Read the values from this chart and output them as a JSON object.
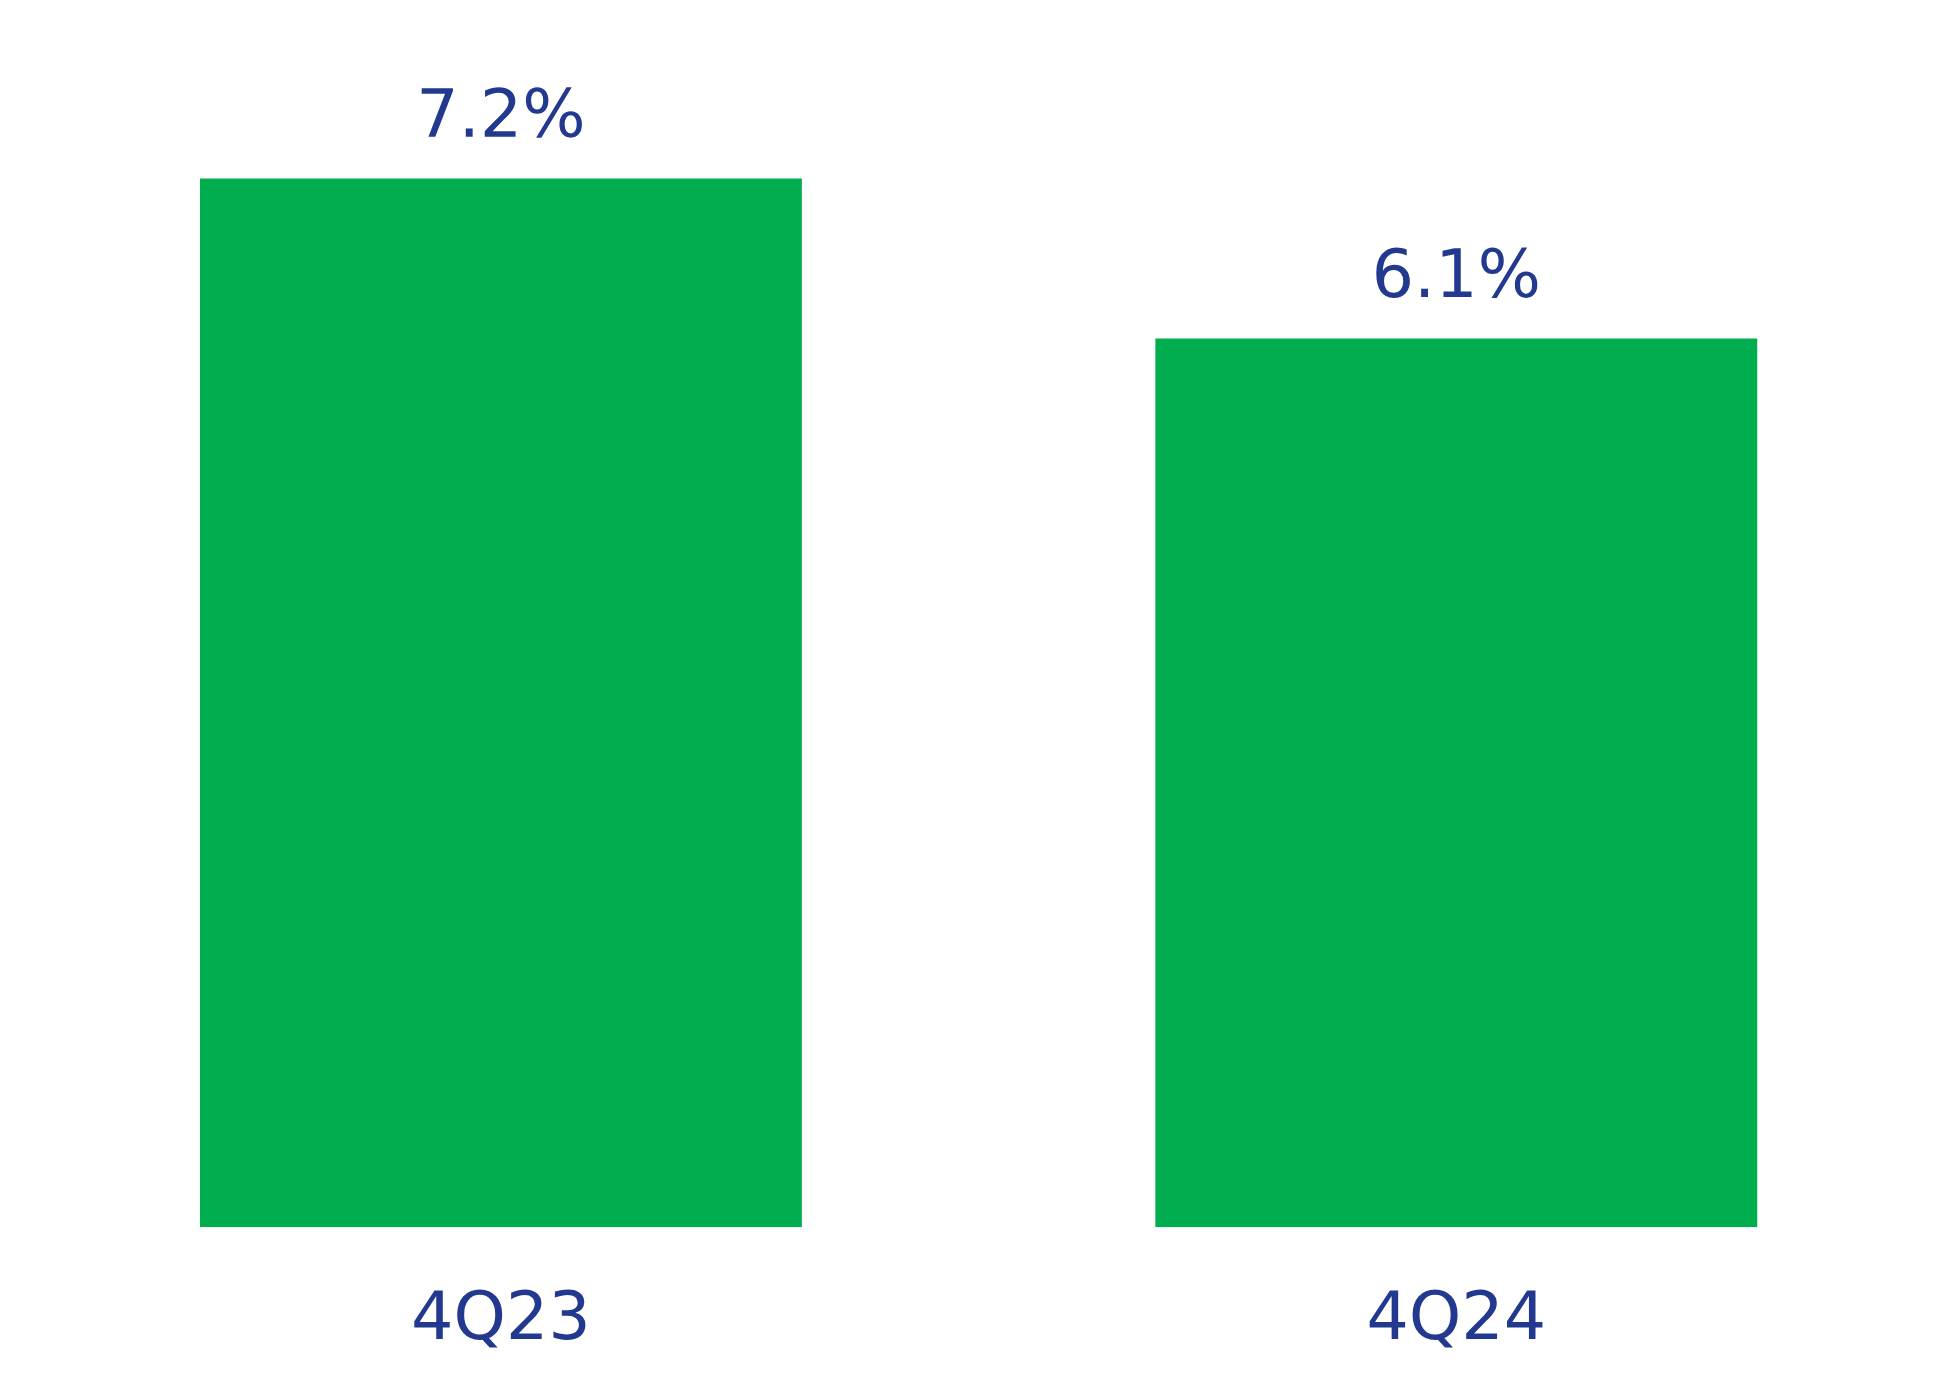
{
  "chart_data": {
    "type": "bar",
    "categories": [
      "4Q23",
      "4Q24"
    ],
    "values": [
      7.2,
      6.1
    ],
    "colors": [
      "#00ae4f",
      "#00ae4f"
    ],
    "value_labels": [
      "7.2%",
      "6.1%"
    ],
    "grid": false
  }
}
